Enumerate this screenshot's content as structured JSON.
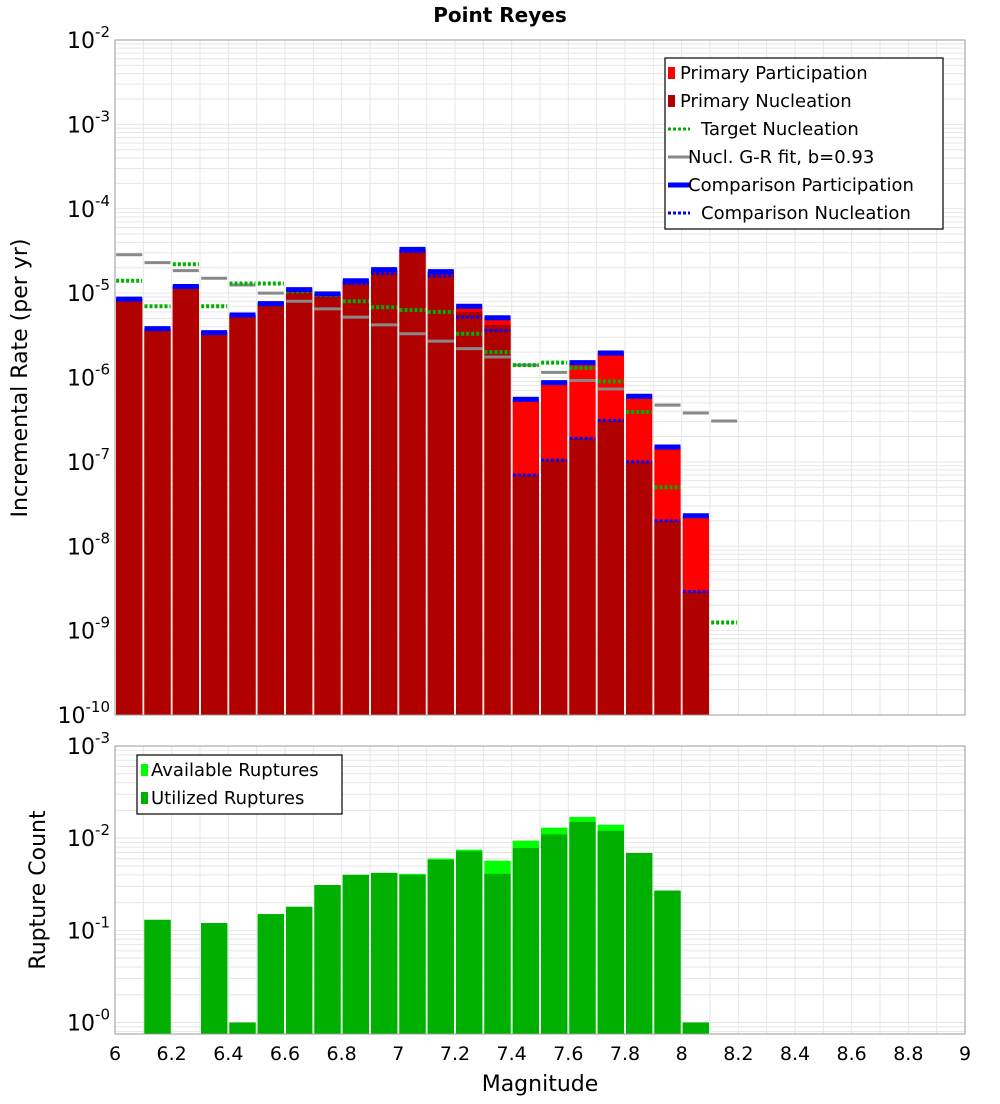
{
  "chart_data": [
    {
      "type": "bar",
      "title": "Point Reyes",
      "xlabel": "",
      "ylabel": "Incremental Rate (per yr)",
      "xlim": [
        6,
        9
      ],
      "ylim": [
        1e-10,
        0.01
      ],
      "yscale": "log",
      "grid": true,
      "legend_position": "top-right",
      "legend": [
        {
          "label": "Primary Participation",
          "style": "bar",
          "color": "#ff0000"
        },
        {
          "label": "Primary Nucleation",
          "style": "bar",
          "color": "#b00000"
        },
        {
          "label": "Target Nucleation",
          "style": "dotted",
          "color": "#00b000"
        },
        {
          "label": "Nucl. G-R fit, b=0.93",
          "style": "solid",
          "color": "#888888"
        },
        {
          "label": "Comparison Participation",
          "style": "solid-thick",
          "color": "#0000ff"
        },
        {
          "label": "Comparison Nucleation",
          "style": "dotted",
          "color": "#0000ff"
        }
      ],
      "bins": [
        6.05,
        6.15,
        6.25,
        6.35,
        6.45,
        6.55,
        6.65,
        6.75,
        6.85,
        6.95,
        7.05,
        7.15,
        7.25,
        7.35,
        7.45,
        7.55,
        7.65,
        7.75,
        7.85,
        7.95,
        8.05
      ],
      "series": [
        {
          "name": "Primary Participation",
          "values": [
            8.5e-06,
            3.8e-06,
            1.2e-05,
            3.4e-06,
            5.5e-06,
            7.5e-06,
            1.1e-05,
            9.8e-06,
            1.4e-05,
            1.9e-05,
            3.3e-05,
            1.8e-05,
            7e-06,
            5.1e-06,
            5.5e-07,
            8.7e-07,
            1.5e-06,
            1.95e-06,
            6e-07,
            1.5e-07,
            2.3e-08
          ]
        },
        {
          "name": "Primary Nucleation",
          "values": [
            8.5e-06,
            3.8e-06,
            1.2e-05,
            3.4e-06,
            5.5e-06,
            7.5e-06,
            1.1e-05,
            9.8e-06,
            1.4e-05,
            1.9e-05,
            3.3e-05,
            1.8e-05,
            6e-06,
            4.2e-06,
            7e-08,
            1.05e-07,
            1.9e-07,
            3.1e-07,
            1e-07,
            2e-08,
            2.9e-09
          ]
        },
        {
          "name": "Target Nucleation",
          "x": [
            6.05,
            6.15,
            6.25,
            6.35,
            6.45,
            6.55,
            6.65,
            6.75,
            6.85,
            6.95,
            7.05,
            7.15,
            7.25,
            7.35,
            7.45,
            7.55,
            7.65,
            7.75,
            7.85,
            7.95,
            8.05,
            8.15
          ],
          "values": [
            1.4e-05,
            7e-06,
            2.2e-05,
            7e-06,
            1.3e-05,
            1.3e-05,
            1.05e-05,
            9.5e-06,
            8e-06,
            6.8e-06,
            6.3e-06,
            6e-06,
            3.3e-06,
            2e-06,
            1.4e-06,
            1.5e-06,
            1.3e-06,
            9e-07,
            3.9e-07,
            5e-08,
            null,
            1.25e-09
          ]
        },
        {
          "name": "Nucl. G-R fit, b=0.93",
          "x": [
            6.05,
            6.15,
            6.25,
            6.35,
            6.45,
            6.55,
            6.65,
            6.75,
            6.85,
            6.95,
            7.05,
            7.15,
            7.25,
            7.35,
            7.45,
            7.55,
            7.65,
            7.75,
            7.85,
            7.95,
            8.05,
            8.15
          ],
          "values": [
            2.85e-05,
            2.3e-05,
            1.85e-05,
            1.5e-05,
            1.25e-05,
            1e-05,
            8e-06,
            6.5e-06,
            5.2e-06,
            4.2e-06,
            3.3e-06,
            2.7e-06,
            2.2e-06,
            1.75e-06,
            1.4e-06,
            1.15e-06,
            9.2e-07,
            7.3e-07,
            5.9e-07,
            4.7e-07,
            3.8e-07,
            3.05e-07
          ]
        },
        {
          "name": "Comparison Participation",
          "values": [
            8.5e-06,
            3.8e-06,
            1.2e-05,
            3.4e-06,
            5.5e-06,
            7.5e-06,
            1.1e-05,
            9.8e-06,
            1.4e-05,
            1.9e-05,
            3.3e-05,
            1.8e-05,
            7e-06,
            5.1e-06,
            5.5e-07,
            8.7e-07,
            1.5e-06,
            1.95e-06,
            6e-07,
            1.5e-07,
            2.3e-08
          ]
        },
        {
          "name": "Comparison Nucleation",
          "values": [
            8.5e-06,
            3.8e-06,
            1.2e-05,
            3.4e-06,
            5.5e-06,
            7.5e-06,
            1.1e-05,
            9.8e-06,
            1.3e-05,
            1.7e-05,
            3.1e-05,
            1.6e-05,
            5.2e-06,
            3.6e-06,
            7e-08,
            1.05e-07,
            1.9e-07,
            3.1e-07,
            1e-07,
            2e-08,
            2.9e-09
          ]
        }
      ],
      "yticks": [
        "10-10",
        "10-9",
        "10-8",
        "10-7",
        "10-6",
        "10-5",
        "10-4",
        "10-3",
        "10-2"
      ]
    },
    {
      "type": "bar",
      "title": "",
      "xlabel": "Magnitude",
      "ylabel": "Rupture Count",
      "xlim": [
        6,
        9
      ],
      "ylim": [
        0.75,
        1000
      ],
      "yscale": "log",
      "grid": true,
      "legend_position": "top-left",
      "legend": [
        {
          "label": "Available Ruptures",
          "style": "bar",
          "color": "#00ff00"
        },
        {
          "label": "Utilized Ruptures",
          "style": "bar",
          "color": "#00b000"
        }
      ],
      "bins": [
        6.05,
        6.15,
        6.25,
        6.35,
        6.45,
        6.55,
        6.65,
        6.75,
        6.85,
        6.95,
        7.05,
        7.15,
        7.25,
        7.35,
        7.45,
        7.55,
        7.65,
        7.75,
        7.85,
        7.95,
        8.05
      ],
      "series": [
        {
          "name": "Available Ruptures",
          "values": [
            null,
            13,
            null,
            12,
            1,
            15,
            18,
            31,
            40,
            42,
            41,
            60,
            75,
            57,
            94,
            130,
            170,
            140,
            69,
            27,
            1
          ]
        },
        {
          "name": "Utilized Ruptures",
          "values": [
            null,
            13,
            null,
            12,
            1,
            15,
            18,
            31,
            40,
            42,
            40,
            58,
            72,
            41,
            78,
            110,
            150,
            120,
            69,
            27,
            1
          ]
        }
      ],
      "xticks": [
        "6",
        "6.2",
        "6.4",
        "6.6",
        "6.8",
        "7",
        "7.2",
        "7.4",
        "7.6",
        "7.8",
        "8",
        "8.2",
        "8.4",
        "8.6",
        "8.8",
        "9"
      ],
      "yticks": [
        "10-0",
        "10-1",
        "10-2",
        "10-3"
      ]
    }
  ],
  "colors": {
    "participation": "#ff0000",
    "nucleation": "#b00000",
    "target": "#00b000",
    "gr_fit": "#888888",
    "comparison": "#0000ff",
    "available": "#00ff00",
    "utilized": "#00b000",
    "grid": "#e6e6e6",
    "frame": "#999999"
  }
}
